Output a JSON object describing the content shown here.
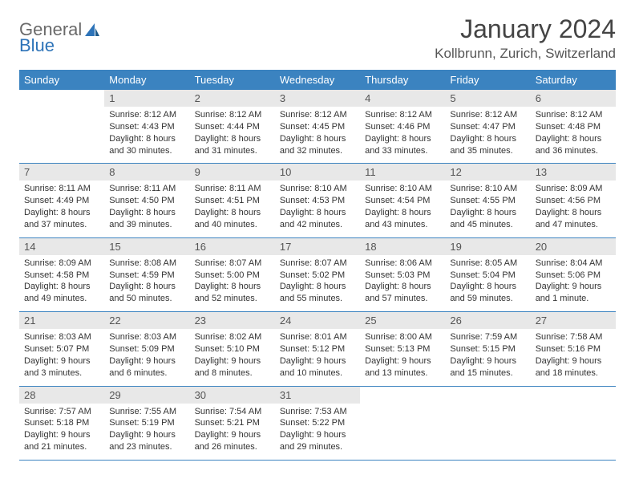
{
  "logo": {
    "part1": "General",
    "part2": "Blue"
  },
  "title": "January 2024",
  "location": "Kollbrunn, Zurich, Switzerland",
  "colors": {
    "header_bg": "#3b83c0",
    "header_text": "#ffffff",
    "daynum_bg": "#e8e8e8",
    "border": "#3b83c0",
    "logo_accent": "#2d73b8",
    "text": "#333333"
  },
  "weekdays": [
    "Sunday",
    "Monday",
    "Tuesday",
    "Wednesday",
    "Thursday",
    "Friday",
    "Saturday"
  ],
  "weeks": [
    [
      {
        "n": "",
        "sr": "",
        "ss": "",
        "d1": "",
        "d2": ""
      },
      {
        "n": "1",
        "sr": "Sunrise: 8:12 AM",
        "ss": "Sunset: 4:43 PM",
        "d1": "Daylight: 8 hours",
        "d2": "and 30 minutes."
      },
      {
        "n": "2",
        "sr": "Sunrise: 8:12 AM",
        "ss": "Sunset: 4:44 PM",
        "d1": "Daylight: 8 hours",
        "d2": "and 31 minutes."
      },
      {
        "n": "3",
        "sr": "Sunrise: 8:12 AM",
        "ss": "Sunset: 4:45 PM",
        "d1": "Daylight: 8 hours",
        "d2": "and 32 minutes."
      },
      {
        "n": "4",
        "sr": "Sunrise: 8:12 AM",
        "ss": "Sunset: 4:46 PM",
        "d1": "Daylight: 8 hours",
        "d2": "and 33 minutes."
      },
      {
        "n": "5",
        "sr": "Sunrise: 8:12 AM",
        "ss": "Sunset: 4:47 PM",
        "d1": "Daylight: 8 hours",
        "d2": "and 35 minutes."
      },
      {
        "n": "6",
        "sr": "Sunrise: 8:12 AM",
        "ss": "Sunset: 4:48 PM",
        "d1": "Daylight: 8 hours",
        "d2": "and 36 minutes."
      }
    ],
    [
      {
        "n": "7",
        "sr": "Sunrise: 8:11 AM",
        "ss": "Sunset: 4:49 PM",
        "d1": "Daylight: 8 hours",
        "d2": "and 37 minutes."
      },
      {
        "n": "8",
        "sr": "Sunrise: 8:11 AM",
        "ss": "Sunset: 4:50 PM",
        "d1": "Daylight: 8 hours",
        "d2": "and 39 minutes."
      },
      {
        "n": "9",
        "sr": "Sunrise: 8:11 AM",
        "ss": "Sunset: 4:51 PM",
        "d1": "Daylight: 8 hours",
        "d2": "and 40 minutes."
      },
      {
        "n": "10",
        "sr": "Sunrise: 8:10 AM",
        "ss": "Sunset: 4:53 PM",
        "d1": "Daylight: 8 hours",
        "d2": "and 42 minutes."
      },
      {
        "n": "11",
        "sr": "Sunrise: 8:10 AM",
        "ss": "Sunset: 4:54 PM",
        "d1": "Daylight: 8 hours",
        "d2": "and 43 minutes."
      },
      {
        "n": "12",
        "sr": "Sunrise: 8:10 AM",
        "ss": "Sunset: 4:55 PM",
        "d1": "Daylight: 8 hours",
        "d2": "and 45 minutes."
      },
      {
        "n": "13",
        "sr": "Sunrise: 8:09 AM",
        "ss": "Sunset: 4:56 PM",
        "d1": "Daylight: 8 hours",
        "d2": "and 47 minutes."
      }
    ],
    [
      {
        "n": "14",
        "sr": "Sunrise: 8:09 AM",
        "ss": "Sunset: 4:58 PM",
        "d1": "Daylight: 8 hours",
        "d2": "and 49 minutes."
      },
      {
        "n": "15",
        "sr": "Sunrise: 8:08 AM",
        "ss": "Sunset: 4:59 PM",
        "d1": "Daylight: 8 hours",
        "d2": "and 50 minutes."
      },
      {
        "n": "16",
        "sr": "Sunrise: 8:07 AM",
        "ss": "Sunset: 5:00 PM",
        "d1": "Daylight: 8 hours",
        "d2": "and 52 minutes."
      },
      {
        "n": "17",
        "sr": "Sunrise: 8:07 AM",
        "ss": "Sunset: 5:02 PM",
        "d1": "Daylight: 8 hours",
        "d2": "and 55 minutes."
      },
      {
        "n": "18",
        "sr": "Sunrise: 8:06 AM",
        "ss": "Sunset: 5:03 PM",
        "d1": "Daylight: 8 hours",
        "d2": "and 57 minutes."
      },
      {
        "n": "19",
        "sr": "Sunrise: 8:05 AM",
        "ss": "Sunset: 5:04 PM",
        "d1": "Daylight: 8 hours",
        "d2": "and 59 minutes."
      },
      {
        "n": "20",
        "sr": "Sunrise: 8:04 AM",
        "ss": "Sunset: 5:06 PM",
        "d1": "Daylight: 9 hours",
        "d2": "and 1 minute."
      }
    ],
    [
      {
        "n": "21",
        "sr": "Sunrise: 8:03 AM",
        "ss": "Sunset: 5:07 PM",
        "d1": "Daylight: 9 hours",
        "d2": "and 3 minutes."
      },
      {
        "n": "22",
        "sr": "Sunrise: 8:03 AM",
        "ss": "Sunset: 5:09 PM",
        "d1": "Daylight: 9 hours",
        "d2": "and 6 minutes."
      },
      {
        "n": "23",
        "sr": "Sunrise: 8:02 AM",
        "ss": "Sunset: 5:10 PM",
        "d1": "Daylight: 9 hours",
        "d2": "and 8 minutes."
      },
      {
        "n": "24",
        "sr": "Sunrise: 8:01 AM",
        "ss": "Sunset: 5:12 PM",
        "d1": "Daylight: 9 hours",
        "d2": "and 10 minutes."
      },
      {
        "n": "25",
        "sr": "Sunrise: 8:00 AM",
        "ss": "Sunset: 5:13 PM",
        "d1": "Daylight: 9 hours",
        "d2": "and 13 minutes."
      },
      {
        "n": "26",
        "sr": "Sunrise: 7:59 AM",
        "ss": "Sunset: 5:15 PM",
        "d1": "Daylight: 9 hours",
        "d2": "and 15 minutes."
      },
      {
        "n": "27",
        "sr": "Sunrise: 7:58 AM",
        "ss": "Sunset: 5:16 PM",
        "d1": "Daylight: 9 hours",
        "d2": "and 18 minutes."
      }
    ],
    [
      {
        "n": "28",
        "sr": "Sunrise: 7:57 AM",
        "ss": "Sunset: 5:18 PM",
        "d1": "Daylight: 9 hours",
        "d2": "and 21 minutes."
      },
      {
        "n": "29",
        "sr": "Sunrise: 7:55 AM",
        "ss": "Sunset: 5:19 PM",
        "d1": "Daylight: 9 hours",
        "d2": "and 23 minutes."
      },
      {
        "n": "30",
        "sr": "Sunrise: 7:54 AM",
        "ss": "Sunset: 5:21 PM",
        "d1": "Daylight: 9 hours",
        "d2": "and 26 minutes."
      },
      {
        "n": "31",
        "sr": "Sunrise: 7:53 AM",
        "ss": "Sunset: 5:22 PM",
        "d1": "Daylight: 9 hours",
        "d2": "and 29 minutes."
      },
      {
        "n": "",
        "sr": "",
        "ss": "",
        "d1": "",
        "d2": ""
      },
      {
        "n": "",
        "sr": "",
        "ss": "",
        "d1": "",
        "d2": ""
      },
      {
        "n": "",
        "sr": "",
        "ss": "",
        "d1": "",
        "d2": ""
      }
    ]
  ]
}
